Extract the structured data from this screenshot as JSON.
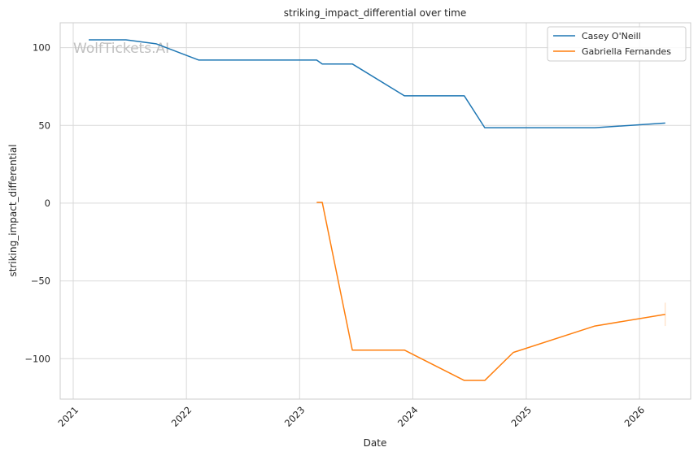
{
  "chart_data": {
    "type": "line",
    "title": "striking_impact_differential over time",
    "xlabel": "Date",
    "ylabel": "striking_impact_differential",
    "watermark": "WolfTickets.AI",
    "xlim": [
      "2020-11-20",
      "2026-06-15"
    ],
    "ylim": [
      -126,
      116
    ],
    "x_ticks": [
      "2021-01-01",
      "2022-01-01",
      "2023-01-01",
      "2024-01-01",
      "2025-01-01",
      "2026-01-01"
    ],
    "x_tick_labels": [
      "2021",
      "2022",
      "2023",
      "2024",
      "2025",
      "2026"
    ],
    "y_ticks": [
      100,
      50,
      0,
      -50,
      -100
    ],
    "y_tick_labels": [
      "100",
      "50",
      "0",
      "−50",
      "−100"
    ],
    "grid": true,
    "legend_position": "top-right",
    "series": [
      {
        "name": "Casey O'Neill",
        "color": "#1f77b4",
        "points": [
          [
            "2021-02-20",
            105
          ],
          [
            "2021-06-20",
            105
          ],
          [
            "2021-09-25",
            102.5
          ],
          [
            "2022-02-10",
            92
          ],
          [
            "2023-02-25",
            92
          ],
          [
            "2023-03-15",
            89.5
          ],
          [
            "2023-06-20",
            89.5
          ],
          [
            "2023-12-05",
            69
          ],
          [
            "2024-06-15",
            69
          ],
          [
            "2024-08-20",
            48.5
          ],
          [
            "2025-08-10",
            48.5
          ],
          [
            "2026-03-25",
            51.5
          ]
        ]
      },
      {
        "name": "Gabriella Fernandes",
        "color": "#ff7f0e",
        "points": [
          [
            "2023-02-25",
            0.5
          ],
          [
            "2023-03-15",
            0.5
          ],
          [
            "2023-06-20",
            -94.5
          ],
          [
            "2023-12-05",
            -94.5
          ],
          [
            "2024-06-15",
            -114
          ],
          [
            "2024-08-20",
            -114
          ],
          [
            "2024-11-20",
            -96
          ],
          [
            "2025-08-10",
            -79
          ],
          [
            "2026-03-25",
            -71.5
          ]
        ],
        "error_bar": {
          "x": "2026-03-25",
          "low": -79,
          "high": -64
        }
      }
    ]
  }
}
